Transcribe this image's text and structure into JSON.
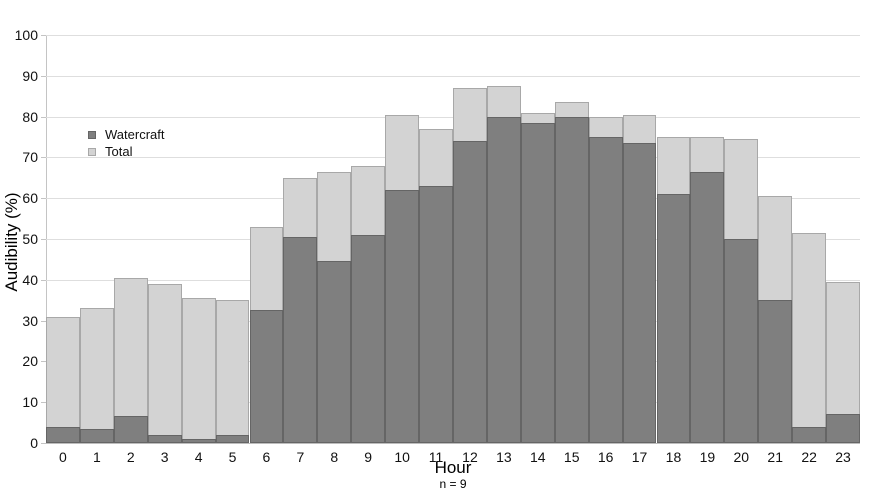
{
  "chart": {
    "y_axis_title": "Audibility (%)",
    "x_axis_title": "Hour",
    "x_axis_subtitle": "n = 9",
    "legend": [
      {
        "label": "Watercraft",
        "color": "#7f7f7f",
        "border": "#656565"
      },
      {
        "label": "Total",
        "color": "#d3d3d3",
        "border": "#a8a8a8"
      }
    ]
  },
  "chart_data": {
    "type": "bar",
    "bar_mode": "overlay",
    "title": "",
    "xlabel": "Hour",
    "ylabel": "Audibility (%)",
    "annotation": "n = 9",
    "categories": [
      "0",
      "1",
      "2",
      "3",
      "4",
      "5",
      "6",
      "7",
      "8",
      "9",
      "10",
      "11",
      "12",
      "13",
      "14",
      "15",
      "16",
      "17",
      "18",
      "19",
      "20",
      "21",
      "22",
      "23"
    ],
    "series": [
      {
        "name": "Total",
        "color": "#d3d3d3",
        "values": [
          31,
          33,
          40.5,
          39,
          35.5,
          35,
          53,
          65,
          66.5,
          68,
          80.5,
          77,
          87,
          87.5,
          81,
          83.5,
          80,
          80.5,
          75,
          75,
          74.5,
          60.5,
          51.5,
          39.5
        ]
      },
      {
        "name": "Watercraft",
        "color": "#7f7f7f",
        "values": [
          4,
          3.5,
          6.5,
          2,
          1,
          2,
          32.5,
          50.5,
          44.5,
          51,
          62,
          63,
          74,
          80,
          78.5,
          80,
          75,
          73.5,
          61,
          66.5,
          50,
          35,
          4,
          7
        ]
      }
    ],
    "ylim": [
      0,
      100
    ],
    "y_ticks": [
      0,
      10,
      20,
      30,
      40,
      50,
      60,
      70,
      80,
      90,
      100
    ],
    "grid": true,
    "legend_position": "upper-left-inside"
  },
  "colors": {
    "background": "#ffffff",
    "gridline": "#dedede",
    "axis": "#c4c4c4",
    "text": "#111111",
    "bar_dark": "#7f7f7f",
    "bar_light": "#d3d3d3"
  }
}
